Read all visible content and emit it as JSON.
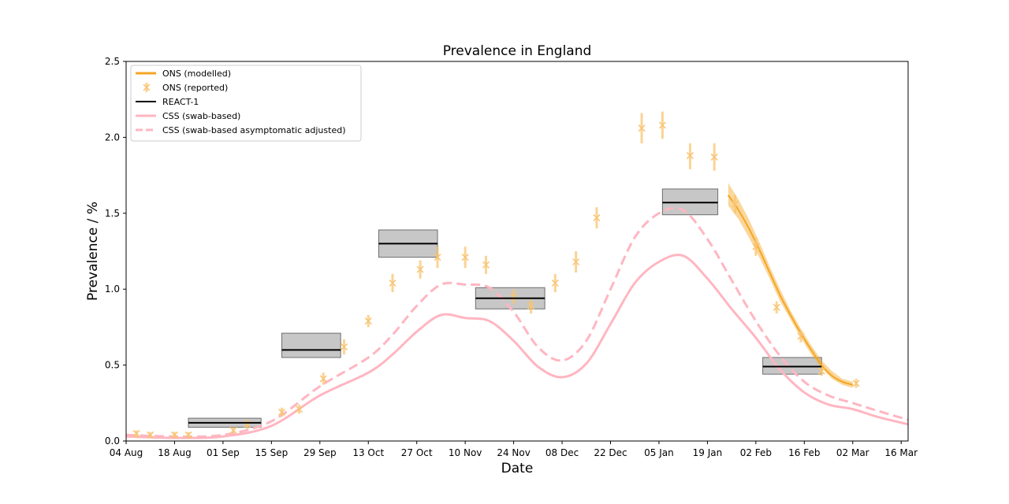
{
  "chart_data": {
    "type": "line",
    "title": "Prevalence in England",
    "xlabel": "Date",
    "ylabel": "Prevalence / %",
    "x_tick_labels": [
      "04 Aug",
      "18 Aug",
      "01 Sep",
      "15 Sep",
      "29 Sep",
      "13 Oct",
      "27 Oct",
      "10 Nov",
      "24 Nov",
      "08 Dec",
      "22 Dec",
      "05 Jan",
      "19 Jan",
      "02 Feb",
      "16 Feb",
      "02 Mar",
      "16 Mar"
    ],
    "y_tick_labels": [
      "0.0",
      "0.5",
      "1.0",
      "1.5",
      "2.0",
      "2.5"
    ],
    "xlim": [
      "2020-08-04",
      "2021-03-18"
    ],
    "ylim": [
      0,
      2.5
    ],
    "grid": false,
    "legend_position": "top-left",
    "legend": [
      {
        "label": "ONS (modelled)",
        "style": "line",
        "color": "#f5a623"
      },
      {
        "label": "ONS (reported)",
        "style": "marker",
        "color": "#f8c471"
      },
      {
        "label": "REACT-1",
        "style": "line",
        "color": "#000000"
      },
      {
        "label": "CSS (swab-based)",
        "style": "line",
        "color": "#ffb6c1"
      },
      {
        "label": "CSS (swab-based asymptomatic adjusted)",
        "style": "dashed",
        "color": "#ffb6c1"
      }
    ],
    "series": [
      {
        "name": "ONS (modelled)",
        "color": "#f5a623",
        "band_color": "#f5a623",
        "x": [
          "2021-01-25",
          "2021-01-28",
          "2021-01-31",
          "2021-02-03",
          "2021-02-06",
          "2021-02-09",
          "2021-02-12",
          "2021-02-15",
          "2021-02-18",
          "2021-02-21",
          "2021-02-24",
          "2021-02-27",
          "2021-03-02"
        ],
        "values": [
          1.62,
          1.52,
          1.4,
          1.26,
          1.11,
          0.96,
          0.83,
          0.71,
          0.6,
          0.5,
          0.43,
          0.39,
          0.37
        ],
        "lower": [
          1.55,
          1.46,
          1.34,
          1.21,
          1.07,
          0.92,
          0.8,
          0.68,
          0.57,
          0.48,
          0.41,
          0.37,
          0.35
        ],
        "upper": [
          1.7,
          1.59,
          1.46,
          1.31,
          1.15,
          1.0,
          0.86,
          0.74,
          0.63,
          0.53,
          0.46,
          0.41,
          0.39
        ]
      },
      {
        "name": "ONS (reported)",
        "color": "#f8c471",
        "x": [
          "2020-08-07",
          "2020-08-11",
          "2020-08-18",
          "2020-08-22",
          "2020-09-04",
          "2020-09-08",
          "2020-09-18",
          "2020-09-23",
          "2020-09-30",
          "2020-10-06",
          "2020-10-13",
          "2020-10-20",
          "2020-10-28",
          "2020-11-02",
          "2020-11-10",
          "2020-11-16",
          "2020-11-24",
          "2020-11-29",
          "2020-12-06",
          "2020-12-12",
          "2020-12-18",
          "2020-12-31",
          "2021-01-06",
          "2021-01-14",
          "2021-01-21",
          "2021-01-27",
          "2021-02-02",
          "2021-02-08",
          "2021-02-15",
          "2021-02-21",
          "2021-03-03"
        ],
        "values": [
          0.05,
          0.04,
          0.04,
          0.04,
          0.07,
          0.11,
          0.19,
          0.21,
          0.41,
          0.62,
          0.79,
          1.04,
          1.13,
          1.21,
          1.21,
          1.16,
          0.95,
          0.89,
          1.04,
          1.18,
          1.47,
          2.06,
          2.08,
          1.88,
          1.87,
          1.56,
          1.28,
          0.88,
          0.69,
          0.46,
          0.38
        ],
        "lower": [
          0.02,
          0.02,
          0.02,
          0.02,
          0.05,
          0.08,
          0.16,
          0.18,
          0.37,
          0.57,
          0.75,
          0.98,
          1.07,
          1.14,
          1.14,
          1.1,
          0.9,
          0.84,
          0.98,
          1.11,
          1.4,
          1.96,
          1.99,
          1.79,
          1.78,
          1.5,
          1.22,
          0.84,
          0.65,
          0.43,
          0.35
        ],
        "upper": [
          0.07,
          0.06,
          0.06,
          0.06,
          0.09,
          0.14,
          0.22,
          0.24,
          0.45,
          0.67,
          0.83,
          1.1,
          1.19,
          1.28,
          1.28,
          1.22,
          1.0,
          0.94,
          1.1,
          1.25,
          1.54,
          2.16,
          2.17,
          1.96,
          1.96,
          1.62,
          1.34,
          0.92,
          0.73,
          0.49,
          0.41
        ]
      },
      {
        "name": "REACT-1",
        "color": "#000000",
        "segments": [
          {
            "start": "2020-08-22",
            "end": "2020-09-12",
            "value": 0.12,
            "lower": 0.09,
            "upper": 0.15
          },
          {
            "start": "2020-09-18",
            "end": "2020-10-05",
            "value": 0.6,
            "lower": 0.55,
            "upper": 0.71
          },
          {
            "start": "2020-10-16",
            "end": "2020-11-02",
            "value": 1.3,
            "lower": 1.21,
            "upper": 1.39
          },
          {
            "start": "2020-11-13",
            "end": "2020-12-03",
            "value": 0.94,
            "lower": 0.87,
            "upper": 1.01
          },
          {
            "start": "2021-01-06",
            "end": "2021-01-22",
            "value": 1.57,
            "lower": 1.49,
            "upper": 1.66
          },
          {
            "start": "2021-02-04",
            "end": "2021-02-21",
            "value": 0.49,
            "lower": 0.44,
            "upper": 0.55
          }
        ]
      },
      {
        "name": "CSS (swab-based)",
        "color": "#ffb6c1",
        "x": [
          "2020-08-04",
          "2020-08-18",
          "2020-09-01",
          "2020-09-15",
          "2020-09-29",
          "2020-10-13",
          "2020-10-20",
          "2020-10-27",
          "2020-11-03",
          "2020-11-10",
          "2020-11-17",
          "2020-11-24",
          "2020-12-01",
          "2020-12-08",
          "2020-12-15",
          "2020-12-22",
          "2020-12-29",
          "2021-01-05",
          "2021-01-12",
          "2021-01-19",
          "2021-01-26",
          "2021-02-02",
          "2021-02-09",
          "2021-02-16",
          "2021-02-23",
          "2021-03-02",
          "2021-03-09",
          "2021-03-18"
        ],
        "values": [
          0.03,
          0.02,
          0.03,
          0.1,
          0.3,
          0.45,
          0.57,
          0.72,
          0.83,
          0.81,
          0.79,
          0.66,
          0.49,
          0.42,
          0.51,
          0.77,
          1.04,
          1.18,
          1.22,
          1.07,
          0.87,
          0.68,
          0.47,
          0.32,
          0.24,
          0.21,
          0.16,
          0.11
        ]
      },
      {
        "name": "CSS (swab-based asymptomatic adjusted)",
        "color": "#ffb6c1",
        "dashed": true,
        "x": [
          "2020-08-04",
          "2020-08-18",
          "2020-09-01",
          "2020-09-15",
          "2020-09-29",
          "2020-10-13",
          "2020-10-20",
          "2020-10-27",
          "2020-11-03",
          "2020-11-10",
          "2020-11-17",
          "2020-11-24",
          "2020-12-01",
          "2020-12-08",
          "2020-12-15",
          "2020-12-22",
          "2020-12-29",
          "2021-01-05",
          "2021-01-12",
          "2021-01-19",
          "2021-01-26",
          "2021-02-02",
          "2021-02-09",
          "2021-02-16",
          "2021-02-23",
          "2021-03-02",
          "2021-03-09",
          "2021-03-18"
        ],
        "values": [
          0.04,
          0.03,
          0.04,
          0.13,
          0.36,
          0.55,
          0.7,
          0.89,
          1.03,
          1.03,
          1.01,
          0.85,
          0.62,
          0.53,
          0.66,
          1.0,
          1.34,
          1.5,
          1.52,
          1.33,
          1.06,
          0.79,
          0.56,
          0.39,
          0.3,
          0.25,
          0.2,
          0.14
        ]
      }
    ]
  }
}
